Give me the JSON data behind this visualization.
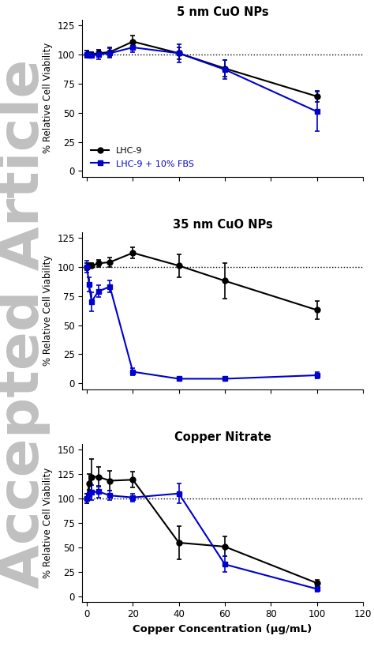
{
  "panel1": {
    "title": "5 nm CuO NPs",
    "x": [
      0,
      1,
      2,
      5,
      10,
      20,
      40,
      60,
      100
    ],
    "black_y": [
      100,
      100,
      100,
      101,
      102,
      111,
      101,
      88,
      64
    ],
    "black_err": [
      3,
      2,
      2,
      3,
      4,
      5,
      5,
      7,
      5
    ],
    "blue_y": [
      100,
      99,
      99,
      100,
      101,
      106,
      101,
      87,
      51
    ],
    "blue_err": [
      3,
      2,
      2,
      4,
      4,
      4,
      8,
      8,
      17
    ],
    "ylim": [
      -5,
      130
    ],
    "yticks": [
      0,
      25,
      50,
      75,
      100,
      125
    ],
    "ylabel": "% Relative Cell Viability"
  },
  "panel2": {
    "title": "35 nm CuO NPs",
    "x": [
      0,
      1,
      2,
      5,
      10,
      20,
      40,
      60,
      100
    ],
    "black_y": [
      100,
      101,
      101,
      103,
      104,
      112,
      101,
      88,
      63
    ],
    "black_err": [
      3,
      2,
      2,
      3,
      4,
      5,
      10,
      15,
      8
    ],
    "blue_y": [
      100,
      85,
      70,
      79,
      83,
      10,
      4,
      4,
      7
    ],
    "blue_err": [
      5,
      6,
      8,
      5,
      5,
      3,
      1,
      1,
      3
    ],
    "ylim": [
      -5,
      130
    ],
    "yticks": [
      0,
      25,
      50,
      75,
      100,
      125
    ],
    "ylabel": "% Relative Cell Viability"
  },
  "panel3": {
    "title": "Copper Nitrate",
    "x": [
      0,
      1,
      2,
      5,
      10,
      20,
      40,
      60,
      100
    ],
    "black_y": [
      100,
      115,
      122,
      122,
      118,
      119,
      55,
      51,
      14
    ],
    "black_err": [
      5,
      10,
      18,
      10,
      10,
      8,
      17,
      10,
      3
    ],
    "blue_y": [
      100,
      104,
      106,
      107,
      103,
      101,
      105,
      33,
      8
    ],
    "blue_err": [
      5,
      5,
      8,
      6,
      5,
      4,
      10,
      8,
      3
    ],
    "ylim": [
      -5,
      155
    ],
    "yticks": [
      0,
      25,
      50,
      75,
      100,
      125,
      150
    ],
    "ylabel": "% Relative Cell Viability"
  },
  "xlabel": "Copper Concentration (μg/mL)",
  "black_color": "#000000",
  "blue_color": "#0000CC",
  "xlim": [
    -2,
    115
  ],
  "xticks": [
    0,
    20,
    40,
    60,
    80,
    100,
    120
  ],
  "legend_label_black": "LHC-9",
  "legend_label_blue": "LHC-9 + 10% FBS",
  "watermark_color": "#C0C0C0",
  "watermark_text": "Accepted Article"
}
